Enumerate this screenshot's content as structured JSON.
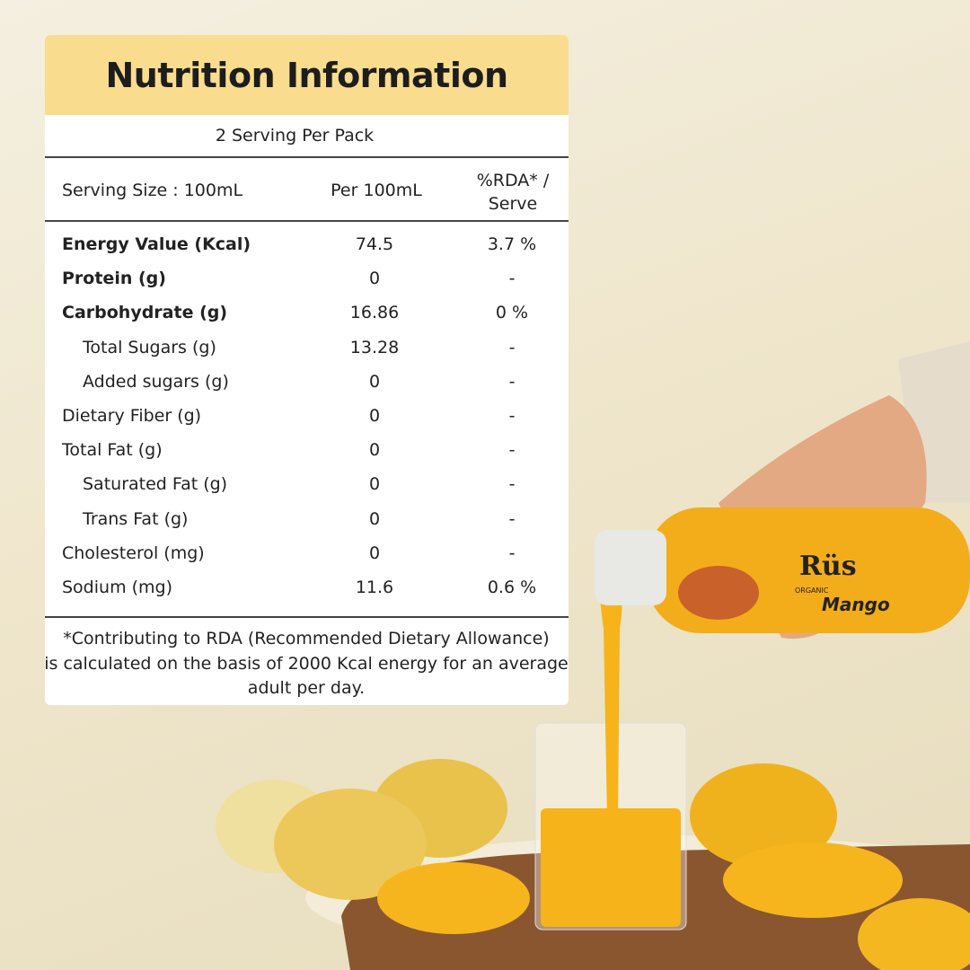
{
  "header": {
    "title": "Nutrition Information"
  },
  "servings": "2 Serving Per Pack",
  "columns": [
    "Serving Size : 100mL",
    "Per 100mL",
    "%RDA* / Serve"
  ],
  "rows": [
    {
      "label": "Energy Value (Kcal)",
      "bold": true,
      "indent": false,
      "per100": "74.5",
      "rda": "3.7 %"
    },
    {
      "label": "Protein (g)",
      "bold": true,
      "indent": false,
      "per100": "0",
      "rda": "-"
    },
    {
      "label": "Carbohydrate (g)",
      "bold": true,
      "indent": false,
      "per100": "16.86",
      "rda": "0 %"
    },
    {
      "label": "Total Sugars (g)",
      "bold": false,
      "indent": true,
      "per100": "13.28",
      "rda": "-"
    },
    {
      "label": "Added sugars (g)",
      "bold": false,
      "indent": true,
      "per100": "0",
      "rda": "-"
    },
    {
      "label": "Dietary Fiber (g)",
      "bold": false,
      "indent": false,
      "per100": "0",
      "rda": "-"
    },
    {
      "label": "Total Fat (g)",
      "bold": false,
      "indent": false,
      "per100": "0",
      "rda": "-"
    },
    {
      "label": "Saturated Fat (g)",
      "bold": false,
      "indent": true,
      "per100": "0",
      "rda": "-"
    },
    {
      "label": "Trans Fat (g)",
      "bold": false,
      "indent": true,
      "per100": "0",
      "rda": "-"
    },
    {
      "label": "Cholesterol (mg)",
      "bold": false,
      "indent": false,
      "per100": "0",
      "rda": "-"
    },
    {
      "label": "Sodium (mg)",
      "bold": false,
      "indent": false,
      "per100": "11.6",
      "rda": "0.6 %"
    }
  ],
  "footnote": [
    "*Contributing to RDA (Recommended Dietary Allowance)",
    "is calculated on the basis of 2000 Kcal energy for an average",
    "adult per day."
  ],
  "product": {
    "brand": "Rüs",
    "subbrand": "ORGANIC",
    "name": "Mango"
  }
}
